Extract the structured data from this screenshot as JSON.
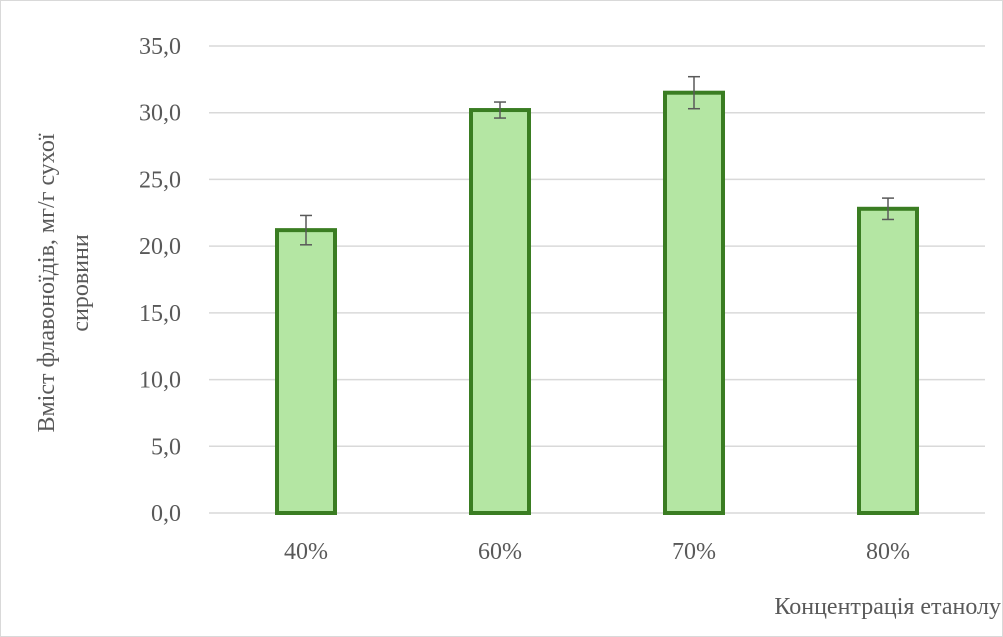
{
  "chart_data": {
    "type": "bar",
    "categories": [
      "40%",
      "60%",
      "70%",
      "80%"
    ],
    "values": [
      21.2,
      30.2,
      31.5,
      22.8
    ],
    "errors": [
      1.1,
      0.6,
      1.2,
      0.8
    ],
    "xlabel": "Концентрація етанолу",
    "ylabel_lines": [
      "Вміст флавоноїдів, мг/г сухої",
      "сировини"
    ],
    "ylim": [
      0,
      35
    ],
    "yticks": [
      0,
      5,
      10,
      15,
      20,
      25,
      30,
      35
    ],
    "ytick_labels": [
      "0,0",
      "5,0",
      "10,0",
      "15,0",
      "20,0",
      "25,0",
      "30,0",
      "35,0"
    ],
    "grid": true,
    "colors": {
      "bar_fill": "#b4e6a3",
      "bar_stroke": "#3a7d22",
      "grid": "#d9d9d9",
      "error_bar": "#595959"
    }
  }
}
